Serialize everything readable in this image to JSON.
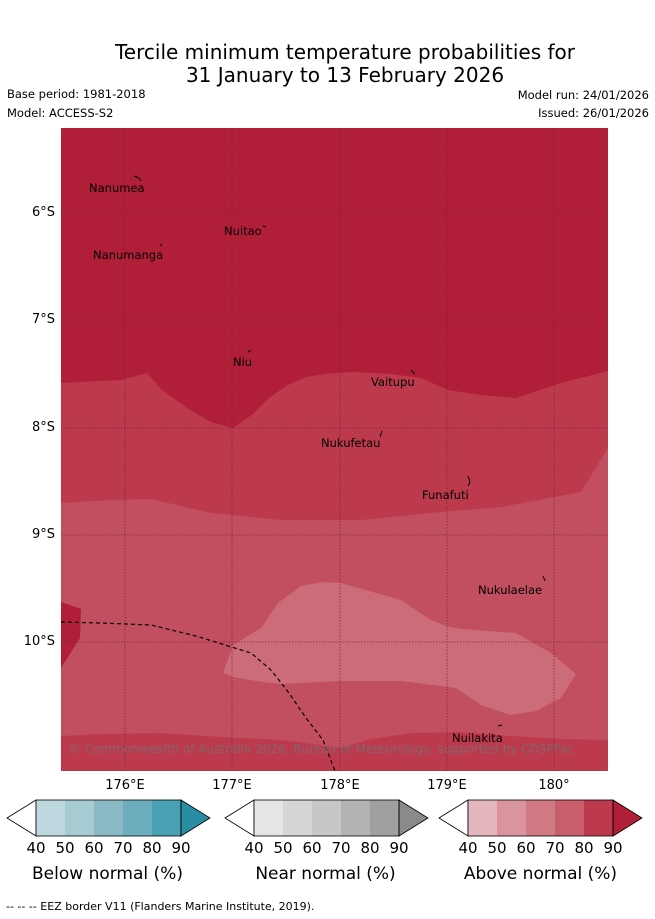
{
  "title": {
    "line1": "Tercile minimum temperature probabilities for",
    "line2": "31 January to 13 February 2026"
  },
  "meta": {
    "base_period": "Base period: 1981-2018",
    "model": "Model: ACCESS-S2",
    "model_run": "Model run: 24/01/2026",
    "issued": "Issued: 26/01/2026"
  },
  "map": {
    "lat_labels": [
      "6°S",
      "7°S",
      "8°S",
      "9°S",
      "10°S"
    ],
    "lon_labels": [
      "176°E",
      "177°E",
      "178°E",
      "179°E",
      "180°"
    ],
    "places": [
      "Nanumea",
      "Nuitao",
      "Nanumanga",
      "Niu",
      "Vaitupu",
      "Nukufetau",
      "Funafuti",
      "Nukulaelae",
      "Nuilakita"
    ],
    "copyright": "© Commonwealth of Australia 2026, Bureau of Meteorology, supported by COSPPac",
    "colors": {
      "above_90": "#b01e38",
      "above_80": "#bc3a4c",
      "above_70": "#c14f5f",
      "above_60": "#cb6c78"
    }
  },
  "colorbars": [
    {
      "title": "Below normal (%)",
      "ticks": [
        "40",
        "50",
        "60",
        "70",
        "80",
        "90"
      ],
      "colors": [
        "#ffffff",
        "#bdd7df",
        "#a6cbd2",
        "#89b9c5",
        "#6badbd",
        "#47a1b3",
        "#2b8da2"
      ]
    },
    {
      "title": "Near normal (%)",
      "ticks": [
        "40",
        "50",
        "60",
        "70",
        "80",
        "90"
      ],
      "colors": [
        "#ffffff",
        "#e5e5e5",
        "#d6d6d6",
        "#c7c7c7",
        "#b3b3b3",
        "#a0a0a0",
        "#8a8a8a"
      ]
    },
    {
      "title": "Above normal (%)",
      "ticks": [
        "40",
        "50",
        "60",
        "70",
        "80",
        "90"
      ],
      "colors": [
        "#ffffff",
        "#e4b6bd",
        "#d9949d",
        "#d27a83",
        "#c85e6c",
        "#bc3a4c",
        "#b01e38"
      ]
    }
  ],
  "footnote": "--  --  -- EEZ border V11 (Flanders Marine Institute, 2019)."
}
